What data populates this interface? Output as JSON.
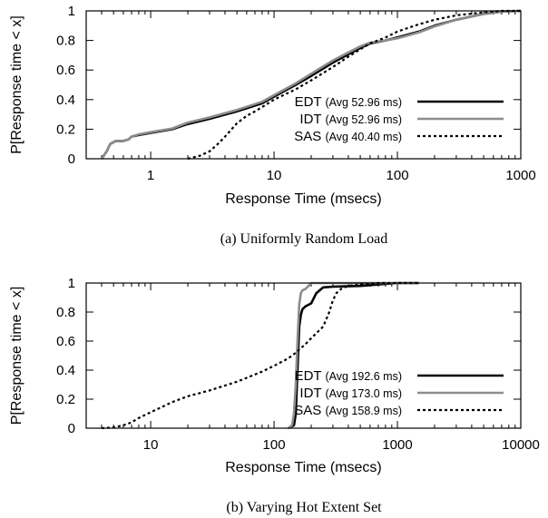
{
  "chart_data": [
    {
      "type": "line",
      "caption": "(a)  Uniformly Random Load",
      "xlabel": "Response Time (msecs)",
      "ylabel": "P[Response time < x]",
      "xscale": "log",
      "xlim": [
        0.3,
        1000
      ],
      "ylim": [
        0,
        1
      ],
      "xticks": [
        1,
        10,
        100,
        1000
      ],
      "xtick_labels": [
        "1",
        "10",
        "100",
        "1000"
      ],
      "yticks": [
        0,
        0.2,
        0.4,
        0.6,
        0.8,
        1
      ],
      "ytick_labels": [
        "0",
        "0.2",
        "0.4",
        "0.6",
        "0.8",
        "1"
      ],
      "legend_position": "bottom-right",
      "series": [
        {
          "name": "EDT",
          "note": "(Avg 52.96 ms)",
          "color": "#000000",
          "style": "solid",
          "x": [
            0.4,
            0.44,
            0.47,
            0.52,
            0.6,
            0.66,
            0.7,
            0.8,
            1,
            1.5,
            2,
            3,
            5,
            8,
            10,
            15,
            20,
            30,
            50,
            60,
            80,
            100,
            150,
            200,
            300,
            500,
            700,
            1000
          ],
          "y": [
            0,
            0.05,
            0.1,
            0.12,
            0.12,
            0.13,
            0.15,
            0.16,
            0.175,
            0.2,
            0.235,
            0.27,
            0.32,
            0.375,
            0.42,
            0.5,
            0.56,
            0.65,
            0.75,
            0.78,
            0.8,
            0.82,
            0.86,
            0.9,
            0.94,
            0.98,
            0.995,
            1.0
          ]
        },
        {
          "name": "IDT",
          "note": "(Avg 52.96 ms)",
          "color": "#8c8c8c",
          "style": "solid",
          "x": [
            0.4,
            0.44,
            0.47,
            0.52,
            0.6,
            0.66,
            0.7,
            0.8,
            1,
            1.5,
            2,
            3,
            5,
            8,
            10,
            15,
            20,
            30,
            50,
            60,
            80,
            100,
            150,
            200,
            300,
            500,
            700,
            1000
          ],
          "y": [
            0,
            0.05,
            0.1,
            0.12,
            0.12,
            0.13,
            0.15,
            0.165,
            0.18,
            0.205,
            0.245,
            0.28,
            0.33,
            0.385,
            0.43,
            0.51,
            0.575,
            0.665,
            0.76,
            0.785,
            0.8,
            0.815,
            0.855,
            0.895,
            0.94,
            0.98,
            0.995,
            1.0
          ]
        },
        {
          "name": "SAS",
          "note": "(Avg 40.40 ms)",
          "color": "#000000",
          "style": "dotted",
          "x": [
            2.0,
            2.5,
            3,
            3.5,
            4,
            5,
            6,
            7,
            8,
            10,
            15,
            20,
            30,
            40,
            50,
            60,
            80,
            100,
            150,
            200,
            300,
            500,
            700,
            1000
          ],
          "y": [
            0,
            0.02,
            0.05,
            0.1,
            0.15,
            0.24,
            0.29,
            0.32,
            0.35,
            0.4,
            0.47,
            0.53,
            0.62,
            0.69,
            0.74,
            0.78,
            0.82,
            0.86,
            0.91,
            0.94,
            0.97,
            0.99,
            1.0,
            1.0
          ]
        }
      ]
    },
    {
      "type": "line",
      "caption": "(b)  Varying Hot Extent Set",
      "xlabel": "Response Time (msecs)",
      "ylabel": "P[Response time < x]",
      "xscale": "log",
      "xlim": [
        3,
        10000
      ],
      "ylim": [
        0,
        1
      ],
      "xticks": [
        10,
        100,
        1000,
        10000
      ],
      "xtick_labels": [
        "10",
        "100",
        "1000",
        "10000"
      ],
      "yticks": [
        0,
        0.2,
        0.4,
        0.6,
        0.8,
        1
      ],
      "ytick_labels": [
        "0",
        "0.2",
        "0.4",
        "0.6",
        "0.8",
        "1"
      ],
      "legend_position": "bottom-right",
      "series": [
        {
          "name": "EDT",
          "note": "(Avg 192.6 ms)",
          "color": "#000000",
          "style": "solid",
          "x": [
            130,
            145,
            150,
            155,
            160,
            165,
            170,
            180,
            200,
            220,
            250,
            300,
            500,
            700,
            1000,
            1500
          ],
          "y": [
            0,
            0.02,
            0.1,
            0.4,
            0.7,
            0.78,
            0.82,
            0.84,
            0.86,
            0.93,
            0.97,
            0.975,
            0.98,
            0.99,
            1.0,
            1.0
          ]
        },
        {
          "name": "IDT",
          "note": "(Avg 173.0 ms)",
          "color": "#8c8c8c",
          "style": "solid",
          "x": [
            130,
            140,
            145,
            150,
            155,
            160,
            165,
            170,
            180,
            190,
            200,
            250,
            1500
          ],
          "y": [
            0,
            0.02,
            0.1,
            0.3,
            0.6,
            0.85,
            0.93,
            0.95,
            0.96,
            0.98,
            1.0,
            1.0,
            1.0
          ]
        },
        {
          "name": "SAS",
          "note": "(Avg 158.9 ms)",
          "color": "#000000",
          "style": "dotted",
          "x": [
            4,
            5,
            6,
            7,
            8,
            10,
            15,
            20,
            30,
            50,
            80,
            100,
            130,
            150,
            180,
            200,
            250,
            280,
            300,
            320,
            350,
            400,
            500,
            700,
            1000,
            1500
          ],
          "y": [
            0,
            0.005,
            0.02,
            0.04,
            0.07,
            0.11,
            0.18,
            0.22,
            0.26,
            0.32,
            0.39,
            0.43,
            0.48,
            0.52,
            0.58,
            0.62,
            0.7,
            0.8,
            0.88,
            0.93,
            0.96,
            0.98,
            0.99,
            1.0,
            1.0,
            1.0
          ]
        }
      ]
    }
  ]
}
